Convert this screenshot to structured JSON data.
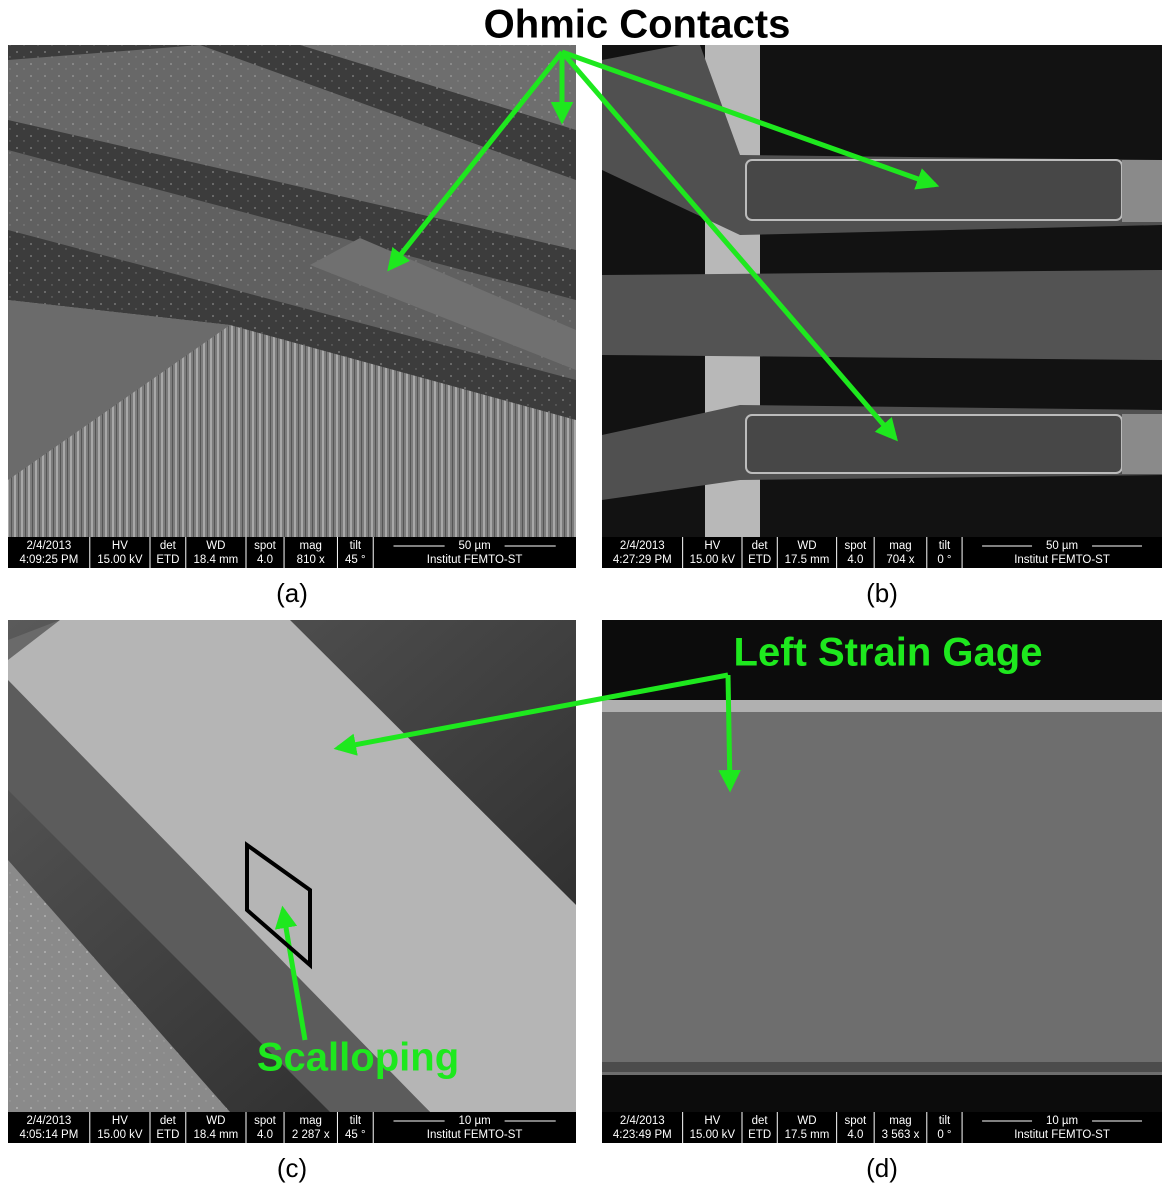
{
  "title": "Ohmic Contacts",
  "annotations": {
    "strain_gage": "Left Strain Gage",
    "scalloping": "Scalloping"
  },
  "info_headers": [
    "HV",
    "det",
    "WD",
    "spot",
    "mag",
    "tilt"
  ],
  "institute": "Institut FEMTO-ST",
  "panels": [
    {
      "label": "(a)",
      "date": "2/4/2013",
      "time": "4:09:25 PM",
      "hv": "15.00 kV",
      "det": "ETD",
      "wd": "18.4 mm",
      "spot": "4.0",
      "mag": "810 x",
      "tilt": "45 °",
      "scale": "50 µm"
    },
    {
      "label": "(b)",
      "date": "2/4/2013",
      "time": "4:27:29 PM",
      "hv": "15.00 kV",
      "det": "ETD",
      "wd": "17.5 mm",
      "spot": "4.0",
      "mag": "704 x",
      "tilt": "0 °",
      "scale": "50 µm"
    },
    {
      "label": "(c)",
      "date": "2/4/2013",
      "time": "4:05:14 PM",
      "hv": "15.00 kV",
      "det": "ETD",
      "wd": "18.4 mm",
      "spot": "4.0",
      "mag": "2 287 x",
      "tilt": "45 °",
      "scale": "10 µm"
    },
    {
      "label": "(d)",
      "date": "2/4/2013",
      "time": "4:23:49 PM",
      "hv": "15.00 kV",
      "det": "ETD",
      "wd": "17.5 mm",
      "spot": "4.0",
      "mag": "3 563 x",
      "tilt": "0 °",
      "scale": "10 µm"
    }
  ]
}
